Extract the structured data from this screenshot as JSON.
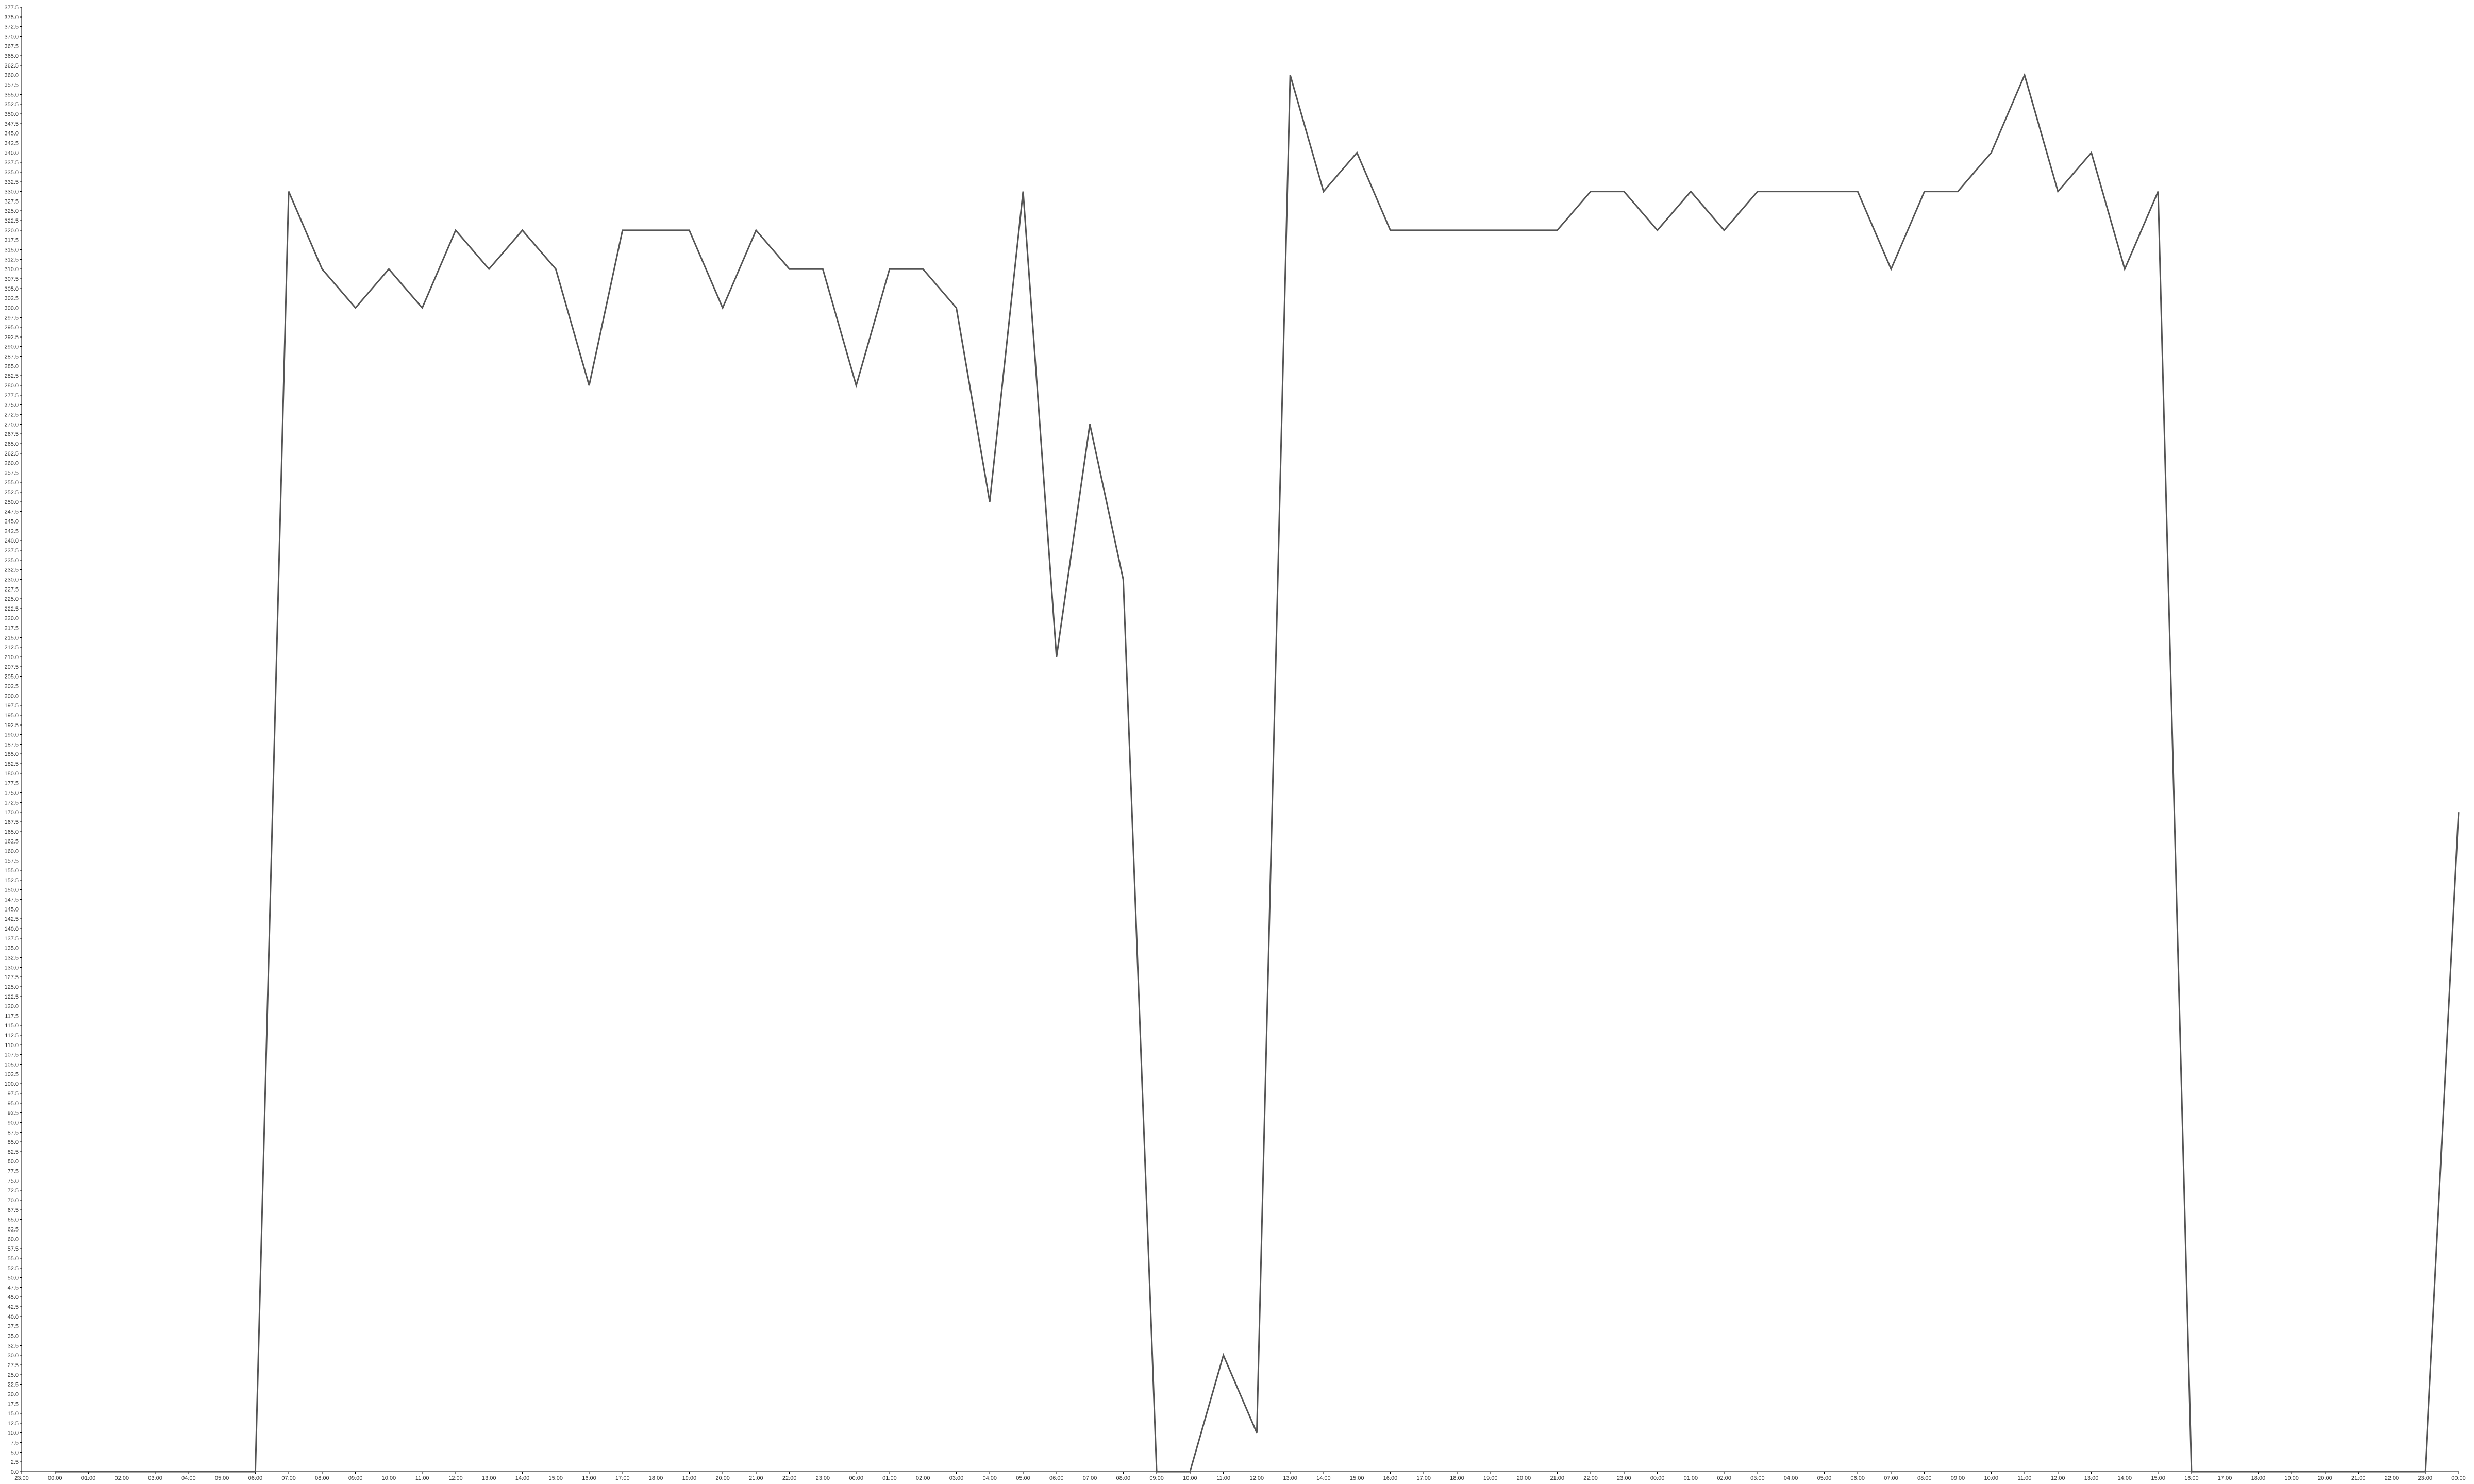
{
  "chart_data": {
    "type": "line",
    "title": "",
    "xlabel": "",
    "ylabel": "",
    "x": [
      "23:00",
      "00:00",
      "01:00",
      "02:00",
      "03:00",
      "04:00",
      "05:00",
      "06:00",
      "07:00",
      "08:00",
      "09:00",
      "10:00",
      "11:00",
      "12:00",
      "13:00",
      "14:00",
      "15:00",
      "16:00",
      "17:00",
      "18:00",
      "19:00",
      "20:00",
      "21:00",
      "22:00",
      "23:00",
      "00:00",
      "01:00",
      "02:00",
      "03:00",
      "04:00",
      "05:00",
      "06:00",
      "07:00",
      "08:00",
      "09:00",
      "10:00",
      "11:00",
      "12:00",
      "13:00",
      "14:00",
      "15:00",
      "16:00",
      "17:00",
      "18:00",
      "19:00",
      "20:00",
      "21:00",
      "22:00",
      "23:00",
      "00:00",
      "01:00",
      "02:00",
      "03:00",
      "04:00",
      "05:00",
      "06:00",
      "07:00",
      "08:00",
      "09:00",
      "10:00",
      "11:00",
      "12:00",
      "13:00",
      "14:00",
      "15:00",
      "16:00",
      "17:00",
      "18:00",
      "19:00",
      "20:00",
      "21:00",
      "22:00",
      "23:00",
      "00:00"
    ],
    "series": [
      {
        "values": [
          null,
          0,
          0,
          0,
          0,
          0,
          0,
          0,
          330,
          310,
          300,
          310,
          300,
          320,
          310,
          320,
          310,
          280,
          320,
          320,
          320,
          300,
          320,
          310,
          310,
          280,
          310,
          310,
          300,
          250,
          330,
          210,
          270,
          230,
          0,
          0,
          30,
          10,
          360,
          330,
          340,
          320,
          320,
          320,
          320,
          320,
          320,
          330,
          330,
          320,
          330,
          320,
          330,
          330,
          330,
          330,
          310,
          330,
          330,
          340,
          360,
          330,
          340,
          310,
          330,
          0,
          0,
          0,
          0,
          0,
          0,
          0,
          0,
          170
        ]
      }
    ],
    "ylim": [
      0,
      377.5
    ],
    "y_tick_step": 2.5,
    "grid": false,
    "colors": {
      "line": "#555555",
      "axis": "#000000",
      "text": "#333333"
    }
  }
}
